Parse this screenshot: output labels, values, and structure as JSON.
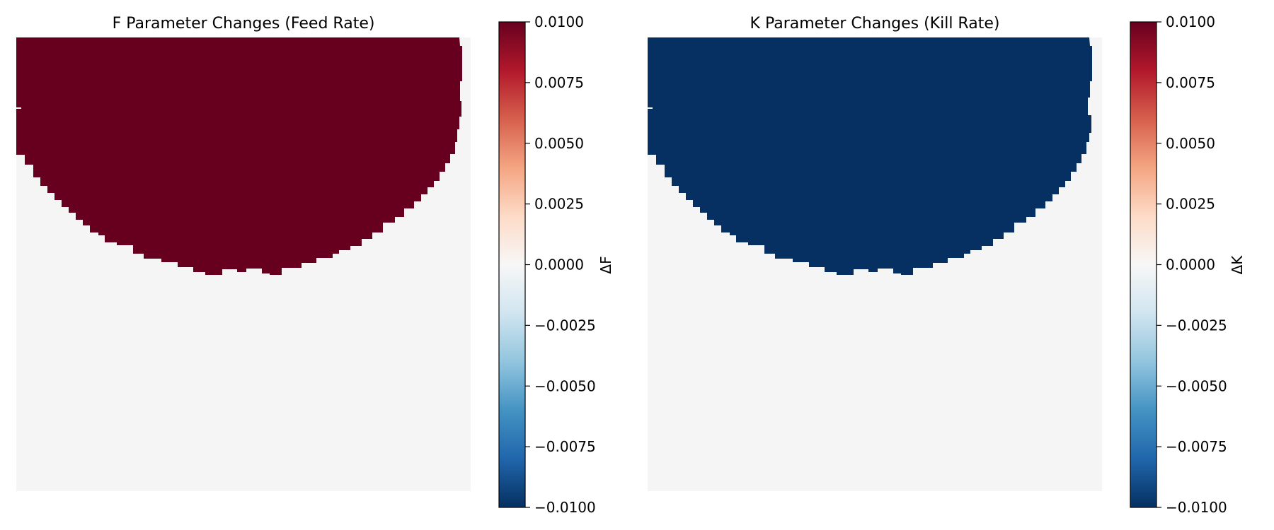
{
  "chart_data": [
    {
      "type": "heatmap",
      "title": "F Parameter Changes (Feed Rate)",
      "colorbar_label": "ΔF",
      "colormap": "RdBu_r",
      "vmin": -0.01,
      "vmax": 0.01,
      "colorbar_ticks": [
        "0.0100",
        "0.0075",
        "0.0050",
        "0.0025",
        "0.0000",
        "−0.0025",
        "−0.0050",
        "−0.0075",
        "−0.0100"
      ],
      "colorbar_tick_values": [
        0.01,
        0.0075,
        0.005,
        0.0025,
        0.0,
        -0.0025,
        -0.005,
        -0.0075,
        -0.01
      ],
      "regions": [
        {
          "name": "changed",
          "value": 0.01,
          "color": "#67001f"
        },
        {
          "name": "unchanged",
          "value": 0.0,
          "color": "#f5f5f5"
        }
      ],
      "axes_visible": false
    },
    {
      "type": "heatmap",
      "title": "K Parameter Changes (Kill Rate)",
      "colorbar_label": "ΔK",
      "colormap": "RdBu_r",
      "vmin": -0.01,
      "vmax": 0.01,
      "colorbar_ticks": [
        "0.0100",
        "0.0075",
        "0.0050",
        "0.0025",
        "0.0000",
        "−0.0025",
        "−0.0050",
        "−0.0075",
        "−0.0100"
      ],
      "colorbar_tick_values": [
        0.01,
        0.0075,
        0.005,
        0.0025,
        0.0,
        -0.0025,
        -0.005,
        -0.0075,
        -0.01
      ],
      "regions": [
        {
          "name": "changed",
          "value": -0.01,
          "color": "#053061"
        },
        {
          "name": "unchanged",
          "value": 0.0,
          "color": "#f5f5f5"
        }
      ],
      "axes_visible": false
    }
  ]
}
